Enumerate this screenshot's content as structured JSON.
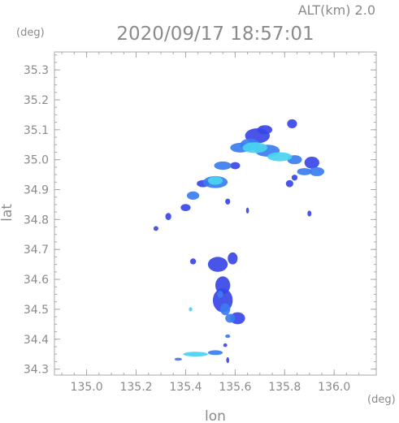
{
  "chart_data": {
    "type": "heatmap",
    "title": "2020/09/17 18:57:01",
    "subtitle": "ALT(km)  2.0",
    "xlabel": "lon",
    "ylabel": "lat",
    "x_unit": "(deg)",
    "y_unit": "(deg)",
    "xlim": [
      134.87,
      136.17
    ],
    "ylim": [
      34.28,
      35.36
    ],
    "xticks": [
      "135.0",
      "135.2",
      "135.4",
      "135.6",
      "135.8",
      "136.0"
    ],
    "yticks": [
      "34.3",
      "34.4",
      "34.5",
      "34.6",
      "34.7",
      "34.8",
      "34.9",
      "35.0",
      "35.1",
      "35.2",
      "35.3"
    ],
    "grid": false,
    "colors": {
      "weak": "#3a46e6",
      "moderate": "#3b7df0",
      "strong": "#49d2f0",
      "axes": "#a8a8a8",
      "text": "#8a8a8a"
    },
    "echo_cells": [
      {
        "lon": 135.69,
        "lat": 35.08,
        "rx": 0.05,
        "ry": 0.025,
        "level": "weak"
      },
      {
        "lon": 135.72,
        "lat": 35.1,
        "rx": 0.03,
        "ry": 0.015,
        "level": "weak"
      },
      {
        "lon": 135.66,
        "lat": 35.05,
        "rx": 0.04,
        "ry": 0.02,
        "level": "moderate"
      },
      {
        "lon": 135.62,
        "lat": 35.04,
        "rx": 0.04,
        "ry": 0.016,
        "level": "moderate"
      },
      {
        "lon": 135.68,
        "lat": 35.04,
        "rx": 0.05,
        "ry": 0.018,
        "level": "strong"
      },
      {
        "lon": 135.73,
        "lat": 35.03,
        "rx": 0.05,
        "ry": 0.02,
        "level": "moderate"
      },
      {
        "lon": 135.78,
        "lat": 35.01,
        "rx": 0.05,
        "ry": 0.015,
        "level": "strong"
      },
      {
        "lon": 135.84,
        "lat": 35.0,
        "rx": 0.03,
        "ry": 0.015,
        "level": "moderate"
      },
      {
        "lon": 135.91,
        "lat": 34.99,
        "rx": 0.03,
        "ry": 0.02,
        "level": "weak"
      },
      {
        "lon": 135.93,
        "lat": 34.96,
        "rx": 0.03,
        "ry": 0.015,
        "level": "moderate"
      },
      {
        "lon": 135.88,
        "lat": 34.96,
        "rx": 0.03,
        "ry": 0.012,
        "level": "moderate"
      },
      {
        "lon": 135.84,
        "lat": 34.94,
        "rx": 0.012,
        "ry": 0.01,
        "level": "weak"
      },
      {
        "lon": 135.82,
        "lat": 34.92,
        "rx": 0.015,
        "ry": 0.012,
        "level": "weak"
      },
      {
        "lon": 135.55,
        "lat": 34.98,
        "rx": 0.035,
        "ry": 0.014,
        "level": "moderate"
      },
      {
        "lon": 135.6,
        "lat": 34.98,
        "rx": 0.02,
        "ry": 0.012,
        "level": "weak"
      },
      {
        "lon": 135.52,
        "lat": 34.93,
        "rx": 0.03,
        "ry": 0.014,
        "level": "strong"
      },
      {
        "lon": 135.52,
        "lat": 34.925,
        "rx": 0.05,
        "ry": 0.02,
        "level": "moderate"
      },
      {
        "lon": 135.47,
        "lat": 34.92,
        "rx": 0.025,
        "ry": 0.012,
        "level": "weak"
      },
      {
        "lon": 135.43,
        "lat": 34.88,
        "rx": 0.025,
        "ry": 0.014,
        "level": "moderate"
      },
      {
        "lon": 135.4,
        "lat": 34.84,
        "rx": 0.02,
        "ry": 0.012,
        "level": "weak"
      },
      {
        "lon": 135.33,
        "lat": 34.81,
        "rx": 0.012,
        "ry": 0.012,
        "level": "weak"
      },
      {
        "lon": 135.28,
        "lat": 34.77,
        "rx": 0.01,
        "ry": 0.008,
        "level": "weak"
      },
      {
        "lon": 135.83,
        "lat": 35.12,
        "rx": 0.02,
        "ry": 0.015,
        "level": "weak"
      },
      {
        "lon": 135.57,
        "lat": 34.86,
        "rx": 0.01,
        "ry": 0.01,
        "level": "weak"
      },
      {
        "lon": 135.65,
        "lat": 34.83,
        "rx": 0.006,
        "ry": 0.01,
        "level": "weak"
      },
      {
        "lon": 135.9,
        "lat": 34.82,
        "rx": 0.008,
        "ry": 0.01,
        "level": "weak"
      },
      {
        "lon": 135.53,
        "lat": 34.65,
        "rx": 0.04,
        "ry": 0.025,
        "level": "weak"
      },
      {
        "lon": 135.59,
        "lat": 34.67,
        "rx": 0.02,
        "ry": 0.02,
        "level": "weak"
      },
      {
        "lon": 135.43,
        "lat": 34.66,
        "rx": 0.012,
        "ry": 0.01,
        "level": "weak"
      },
      {
        "lon": 135.55,
        "lat": 34.58,
        "rx": 0.03,
        "ry": 0.03,
        "level": "weak"
      },
      {
        "lon": 135.55,
        "lat": 34.53,
        "rx": 0.04,
        "ry": 0.04,
        "level": "weak"
      },
      {
        "lon": 135.56,
        "lat": 34.5,
        "rx": 0.02,
        "ry": 0.02,
        "level": "moderate"
      },
      {
        "lon": 135.54,
        "lat": 34.55,
        "rx": 0.012,
        "ry": 0.012,
        "level": "moderate"
      },
      {
        "lon": 135.58,
        "lat": 34.47,
        "rx": 0.02,
        "ry": 0.015,
        "level": "moderate"
      },
      {
        "lon": 135.61,
        "lat": 34.47,
        "rx": 0.03,
        "ry": 0.02,
        "level": "weak"
      },
      {
        "lon": 135.42,
        "lat": 34.5,
        "rx": 0.007,
        "ry": 0.007,
        "level": "strong"
      },
      {
        "lon": 135.57,
        "lat": 34.41,
        "rx": 0.01,
        "ry": 0.006,
        "level": "moderate"
      },
      {
        "lon": 135.56,
        "lat": 34.38,
        "rx": 0.008,
        "ry": 0.006,
        "level": "weak"
      },
      {
        "lon": 135.44,
        "lat": 34.35,
        "rx": 0.05,
        "ry": 0.008,
        "level": "strong"
      },
      {
        "lon": 135.52,
        "lat": 34.355,
        "rx": 0.03,
        "ry": 0.008,
        "level": "moderate"
      },
      {
        "lon": 135.37,
        "lat": 34.333,
        "rx": 0.015,
        "ry": 0.005,
        "level": "moderate"
      },
      {
        "lon": 135.57,
        "lat": 34.33,
        "rx": 0.006,
        "ry": 0.01,
        "level": "weak"
      }
    ]
  }
}
